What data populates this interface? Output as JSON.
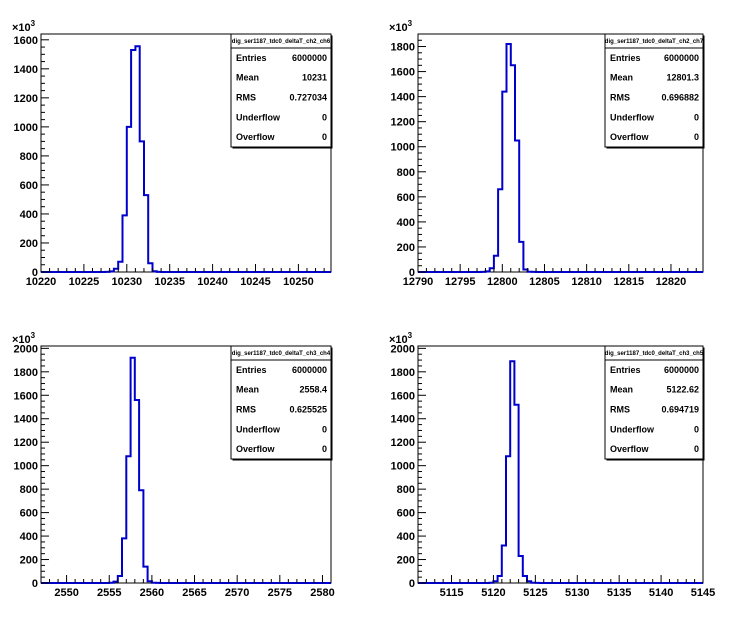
{
  "chart_data": [
    {
      "type": "histogram",
      "title": "dig_ser1187_tdc0_deltaT_ch2_ch6",
      "x_tick_labels": [
        "10220",
        "10225",
        "10230",
        "10235",
        "10240",
        "10245",
        "10250"
      ],
      "x_ticks": [
        10220,
        10225,
        10230,
        10235,
        10240,
        10245,
        10250
      ],
      "xlim": [
        10220,
        10253.8
      ],
      "y_tick_labels": [
        "0",
        "200",
        "400",
        "600",
        "800",
        "1000",
        "1200",
        "1400",
        "1600"
      ],
      "y_ticks": [
        0,
        200,
        400,
        600,
        800,
        1000,
        1200,
        1400,
        1600
      ],
      "ylim": [
        0,
        1640
      ],
      "y_exponent": "3",
      "bin_edges": [
        10227.5,
        10228,
        10228.5,
        10229,
        10229.5,
        10230,
        10230.5,
        10231,
        10231.5,
        10232,
        10232.5,
        10233,
        10233.5,
        10234
      ],
      "values": [
        1,
        4,
        22,
        70,
        390,
        1000,
        1530,
        1555,
        900,
        530,
        60,
        5,
        1
      ],
      "stats": {
        "header": "dig_ser1187_tdc0_deltaT_ch2_ch6",
        "rows": [
          {
            "label": "Entries",
            "value": "6000000"
          },
          {
            "label": "Mean",
            "value": "10231"
          },
          {
            "label": "RMS",
            "value": "0.727034"
          },
          {
            "label": "Underflow",
            "value": "0"
          },
          {
            "label": "Overflow",
            "value": "0"
          }
        ]
      }
    },
    {
      "type": "histogram",
      "title": "dig_ser1187_tdc0_deltaT_ch2_ch7",
      "x_tick_labels": [
        "12790",
        "12795",
        "12800",
        "12805",
        "12810",
        "12815",
        "12820"
      ],
      "x_ticks": [
        12790,
        12795,
        12800,
        12805,
        12810,
        12815,
        12820
      ],
      "xlim": [
        12790,
        12823.8
      ],
      "y_tick_labels": [
        "0",
        "200",
        "400",
        "600",
        "800",
        "1000",
        "1200",
        "1400",
        "1600",
        "1800"
      ],
      "y_ticks": [
        0,
        200,
        400,
        600,
        800,
        1000,
        1200,
        1400,
        1600,
        1800
      ],
      "ylim": [
        0,
        1900
      ],
      "y_exponent": "3",
      "bin_edges": [
        12797.5,
        12798,
        12798.5,
        12799,
        12799.5,
        12800,
        12800.5,
        12801,
        12801.5,
        12802,
        12802.5,
        12803,
        12803.5,
        12804
      ],
      "values": [
        1,
        5,
        30,
        130,
        660,
        1440,
        1820,
        1650,
        1050,
        240,
        20,
        2,
        1
      ],
      "stats": {
        "header": "dig_ser1187_tdc0_deltaT_ch2_ch7",
        "rows": [
          {
            "label": "Entries",
            "value": "6000000"
          },
          {
            "label": "Mean",
            "value": "12801.3"
          },
          {
            "label": "RMS",
            "value": "0.696882"
          },
          {
            "label": "Underflow",
            "value": "0"
          },
          {
            "label": "Overflow",
            "value": "0"
          }
        ]
      }
    },
    {
      "type": "histogram",
      "title": "dig_ser1187_tdc0_deltaT_ch3_ch4",
      "x_tick_labels": [
        "2550",
        "2555",
        "2560",
        "2565",
        "2570",
        "2575",
        "2580"
      ],
      "x_ticks": [
        2550,
        2555,
        2560,
        2565,
        2570,
        2575,
        2580
      ],
      "xlim": [
        2547,
        2581
      ],
      "y_tick_labels": [
        "0",
        "200",
        "400",
        "600",
        "800",
        "1000",
        "1200",
        "1400",
        "1600",
        "1800",
        "2000"
      ],
      "y_ticks": [
        0,
        200,
        400,
        600,
        800,
        1000,
        1200,
        1400,
        1600,
        1800,
        2000
      ],
      "ylim": [
        0,
        2020
      ],
      "y_exponent": "3",
      "bin_edges": [
        2555,
        2555.5,
        2556,
        2556.5,
        2557,
        2557.5,
        2558,
        2558.5,
        2559,
        2559.5,
        2560,
        2560.5,
        2561
      ],
      "values": [
        2,
        12,
        60,
        380,
        1080,
        1920,
        1560,
        790,
        140,
        15,
        2,
        1
      ],
      "stats": {
        "header": "dig_ser1187_tdc0_deltaT_ch3_ch4",
        "rows": [
          {
            "label": "Entries",
            "value": "6000000"
          },
          {
            "label": "Mean",
            "value": "2558.4"
          },
          {
            "label": "RMS",
            "value": "0.625525"
          },
          {
            "label": "Underflow",
            "value": "0"
          },
          {
            "label": "Overflow",
            "value": "0"
          }
        ]
      }
    },
    {
      "type": "histogram",
      "title": "dig_ser1187_tdc0_deltaT_ch3_ch5",
      "x_tick_labels": [
        "5115",
        "5120",
        "5125",
        "5130",
        "5135",
        "5140",
        "5145"
      ],
      "x_ticks": [
        5115,
        5120,
        5125,
        5130,
        5135,
        5140,
        5145
      ],
      "xlim": [
        5111,
        5145
      ],
      "y_tick_labels": [
        "0",
        "200",
        "400",
        "600",
        "800",
        "1000",
        "1200",
        "1400",
        "1600",
        "1800",
        "2000"
      ],
      "y_ticks": [
        0,
        200,
        400,
        600,
        800,
        1000,
        1200,
        1400,
        1600,
        1800,
        2000
      ],
      "ylim": [
        0,
        2020
      ],
      "y_exponent": "3",
      "bin_edges": [
        5119.5,
        5120,
        5120.5,
        5121,
        5121.5,
        5122,
        5122.5,
        5123,
        5123.5,
        5124,
        5124.5,
        5125,
        5125.5
      ],
      "values": [
        2,
        15,
        60,
        320,
        1080,
        1890,
        1520,
        230,
        60,
        15,
        2,
        1
      ],
      "stats": {
        "header": "dig_ser1187_tdc0_deltaT_ch3_ch5",
        "rows": [
          {
            "label": "Entries",
            "value": "6000000"
          },
          {
            "label": "Mean",
            "value": "5122.62"
          },
          {
            "label": "RMS",
            "value": "0.694719"
          },
          {
            "label": "Underflow",
            "value": "0"
          },
          {
            "label": "Overflow",
            "value": "0"
          }
        ]
      }
    }
  ],
  "colors": {
    "histogram_line": "#0000cc",
    "axis": "#000000",
    "background": "#ffffff"
  }
}
